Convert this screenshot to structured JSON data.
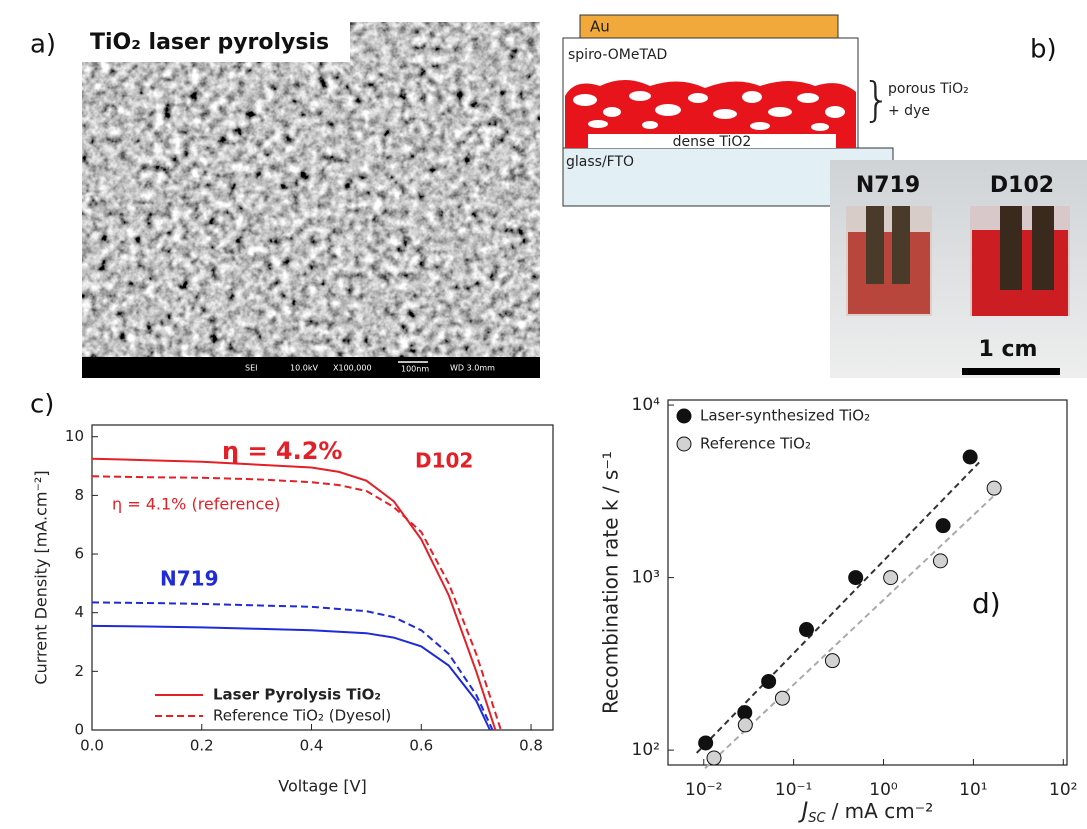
{
  "panels": {
    "a": "a)",
    "b": "b)",
    "c": "c)",
    "d": "d)"
  },
  "sem": {
    "label": "TiO₂ laser pyrolysis",
    "info": [
      "SEI",
      "10.0kV",
      "X100,000",
      "100nm",
      "WD 3.0mm"
    ]
  },
  "device": {
    "layers": [
      "Au",
      "spiro-OMeTAD",
      "dense TiO2",
      "glass/FTO"
    ],
    "porous": [
      "porous TiO₂",
      "+ dye"
    ]
  },
  "photo": {
    "samples": [
      "N719",
      "D102"
    ],
    "scale": "1 cm"
  },
  "chart_data": [
    {
      "type": "line",
      "xlabel": "Voltage [V]",
      "ylabel": "Current Density [mA.cm⁻²]",
      "xlim": [
        0,
        0.84
      ],
      "ylim": [
        0,
        10.4
      ],
      "xticks": [
        {
          "value": 0,
          "label": "0.0"
        },
        0.2,
        0.4,
        0.6,
        0.8
      ],
      "yticks": [
        0,
        2,
        4,
        6,
        8,
        10
      ],
      "series": [
        {
          "color": "#e41f26",
          "style": "solid",
          "x": [
            0,
            0.1,
            0.2,
            0.3,
            0.4,
            0.45,
            0.5,
            0.55,
            0.6,
            0.65,
            0.7,
            0.735
          ],
          "values": [
            9.25,
            9.2,
            9.15,
            9.05,
            8.95,
            8.8,
            8.5,
            7.8,
            6.5,
            4.6,
            2.0,
            0
          ]
        },
        {
          "color": "#e41f26",
          "style": "dashed",
          "x": [
            0,
            0.1,
            0.2,
            0.3,
            0.4,
            0.45,
            0.5,
            0.55,
            0.6,
            0.65,
            0.7,
            0.745
          ],
          "values": [
            8.65,
            8.62,
            8.6,
            8.55,
            8.45,
            8.35,
            8.15,
            7.6,
            6.75,
            5.0,
            2.6,
            0
          ]
        },
        {
          "color": "#1f2bd6",
          "style": "solid",
          "x": [
            0,
            0.1,
            0.2,
            0.3,
            0.4,
            0.5,
            0.55,
            0.6,
            0.65,
            0.7,
            0.725
          ],
          "values": [
            3.55,
            3.53,
            3.5,
            3.45,
            3.4,
            3.3,
            3.15,
            2.85,
            2.2,
            1.0,
            0
          ]
        },
        {
          "color": "#1f2bd6",
          "style": "dashed",
          "x": [
            0,
            0.1,
            0.2,
            0.3,
            0.4,
            0.5,
            0.55,
            0.6,
            0.65,
            0.7,
            0.73
          ],
          "values": [
            4.35,
            4.33,
            4.3,
            4.25,
            4.2,
            4.05,
            3.85,
            3.4,
            2.6,
            1.2,
            0
          ]
        }
      ],
      "legend": [
        {
          "label": "Laser Pyrolysis TiO₂",
          "style": "solid",
          "color": "#e41f26"
        },
        {
          "label": "Reference TiO₂ (Dyesol)",
          "style": "dashed",
          "color": "#e41f26"
        }
      ],
      "annotations": [
        {
          "text": "η = 4.2%",
          "color": "#e41f26"
        },
        {
          "text": "η = 4.1% (reference)",
          "color": "#e41f26"
        },
        {
          "text": "D102",
          "color": "#e41f26"
        },
        {
          "text": "N719",
          "color": "#1f2bd6"
        }
      ]
    },
    {
      "type": "scatter",
      "xscale": "log",
      "yscale": "log",
      "ylabel": "Recombination rate k / s⁻¹",
      "xlabel": {
        "symbol": "J",
        "subscript": "SC",
        "unit": "/ mA cm⁻²"
      },
      "xlim": [
        0.004,
        110
      ],
      "ylim": [
        82,
        10700
      ],
      "xticks": [
        {
          "value": 0.01,
          "label": "10⁻²"
        },
        {
          "value": 0.1,
          "label": "10⁻¹"
        },
        {
          "value": 1,
          "label": "10⁰"
        },
        {
          "value": 10,
          "label": "10¹"
        },
        {
          "value": 100,
          "label": "10²"
        }
      ],
      "yticks": [
        {
          "value": 100,
          "label": "10²"
        },
        {
          "value": 1000,
          "label": "10³"
        },
        {
          "value": 10000,
          "label": "10⁴"
        }
      ],
      "series": [
        {
          "name": "Laser-synthesized TiO₂",
          "color": "#111111",
          "line_color": "#333333",
          "x": [
            0.0105,
            0.0286,
            0.0527,
            0.139,
            0.49,
            4.6,
            9.2
          ],
          "values": [
            110,
            165,
            250,
            500,
            1000,
            2000,
            5000
          ]
        },
        {
          "name": "Reference TiO₂",
          "color": "#d2d2d2",
          "line_color": "#aaaaaa",
          "x": [
            0.013,
            0.029,
            0.075,
            0.27,
            1.2,
            4.3,
            17
          ],
          "values": [
            90,
            140,
            200,
            330,
            1000,
            1250,
            3300
          ]
        }
      ]
    }
  ]
}
